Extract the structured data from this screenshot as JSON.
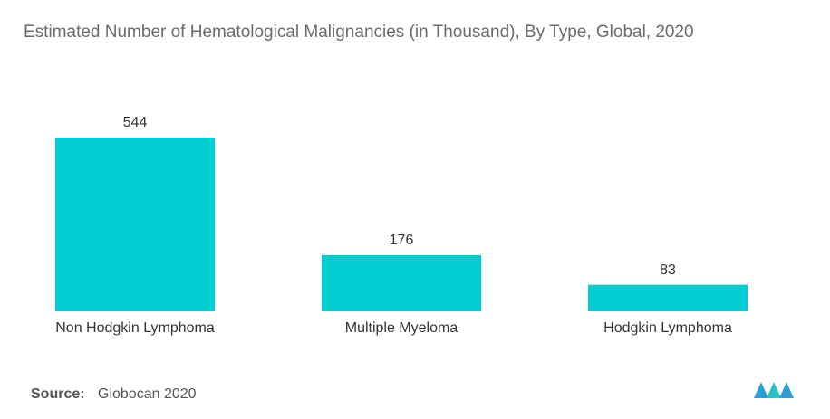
{
  "chart_data": {
    "type": "bar",
    "title": "Estimated Number of Hematological Malignancies (in Thousand), By Type, Global, 2020",
    "categories": [
      "Non Hodgkin Lymphoma",
      "Multiple Myeloma",
      "Hodgkin Lymphoma"
    ],
    "values": [
      544,
      176,
      83
    ],
    "color": "#00ced1",
    "source_label": "Source:",
    "source": "Globocan 2020"
  }
}
